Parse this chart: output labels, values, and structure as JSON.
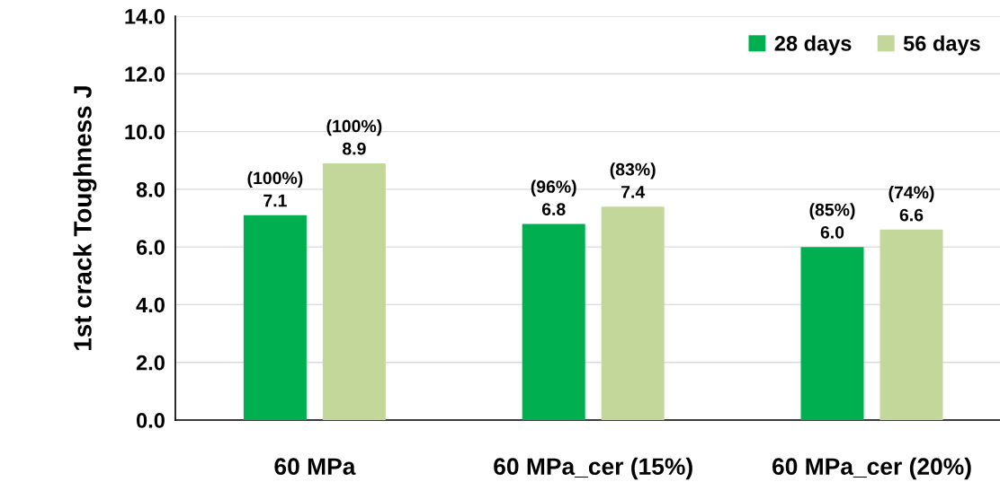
{
  "chart_data": {
    "type": "bar",
    "ylabel": "1st crack Toughness J",
    "categories": [
      "60 MPa",
      "60 MPa_cer (15%)",
      "60 MPa_cer (20%)"
    ],
    "series": [
      {
        "name": "28 days",
        "color": "#00b050",
        "values": [
          7.1,
          6.8,
          6.0
        ],
        "value_labels": [
          "(100%)\n7.1",
          "(96%)\n6.8",
          "(85%)\n6.0"
        ]
      },
      {
        "name": "56 days",
        "color": "#c4d79b",
        "values": [
          8.9,
          7.4,
          6.6
        ],
        "value_labels": [
          "(100%)\n8.9",
          "(83%)\n7.4",
          "(74%)\n6.6"
        ]
      }
    ],
    "ylim": [
      0,
      14
    ],
    "yticks": [
      {
        "value": 0,
        "label": "0.0"
      },
      {
        "value": 2,
        "label": "2.0"
      },
      {
        "value": 4,
        "label": "4.0"
      },
      {
        "value": 6,
        "label": "6.0"
      },
      {
        "value": 8,
        "label": "8.0"
      },
      {
        "value": 10,
        "label": "10.0"
      },
      {
        "value": 12,
        "label": "12.0"
      },
      {
        "value": 14,
        "label": "14.0"
      }
    ],
    "grid": "y",
    "legend": "top right"
  }
}
